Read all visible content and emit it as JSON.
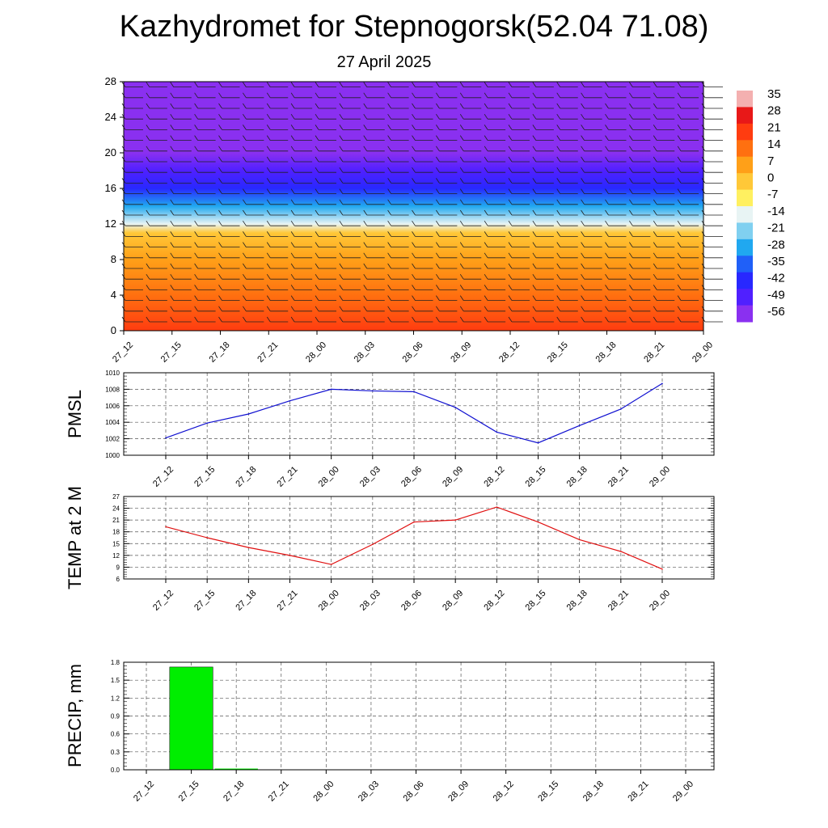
{
  "title": "Kazhydromet for Stepnogorsk(52.04 71.08)",
  "subtitle": "27 April 2025",
  "colors": {
    "pmsl_line": "#1010d0",
    "temp_line": "#e01010",
    "precip_bar": "#00ee00",
    "grid": "#555555"
  },
  "chart_data": [
    {
      "type": "heatmap",
      "name": "cross-section",
      "x_labels": [
        "27_12",
        "27_15",
        "27_18",
        "27_21",
        "28_00",
        "28_03",
        "28_06",
        "28_09",
        "28_12",
        "28_15",
        "28_18",
        "28_21",
        "29_00"
      ],
      "y_ticks": [
        "0",
        "4",
        "8",
        "12",
        "16",
        "20",
        "24",
        "28"
      ],
      "ylim": [
        0,
        28
      ],
      "colorbar_labels": [
        "35",
        "28",
        "21",
        "14",
        "7",
        "0",
        "-7",
        "-14",
        "-21",
        "-28",
        "-35",
        "-42",
        "-49",
        "-56"
      ],
      "colorbar_colors": [
        "#f4b0b0",
        "#e81818",
        "#ff3c10",
        "#ff7010",
        "#ffa018",
        "#ffc838",
        "#fff060",
        "#e8f4f4",
        "#80d0f0",
        "#20a8f0",
        "#2060f8",
        "#2828ff",
        "#5020ff",
        "#8a30f0"
      ],
      "temperature_profile": [
        {
          "level": 0,
          "value": 22
        },
        {
          "level": 4,
          "value": 14
        },
        {
          "level": 8,
          "value": 5
        },
        {
          "level": 11,
          "value": -3
        },
        {
          "level": 12,
          "value": -12
        },
        {
          "level": 14,
          "value": -28
        },
        {
          "level": 16,
          "value": -40
        },
        {
          "level": 18,
          "value": -50
        },
        {
          "level": 20,
          "value": -54
        },
        {
          "level": 24,
          "value": -55
        },
        {
          "level": 28,
          "value": -60
        }
      ]
    },
    {
      "type": "line",
      "name": "pmsl",
      "ylabel": "PMSL",
      "categories": [
        "27_12",
        "27_15",
        "27_18",
        "27_21",
        "28_00",
        "28_03",
        "28_06",
        "28_09",
        "28_12",
        "28_15",
        "28_18",
        "28_21",
        "29_00"
      ],
      "values": [
        1002.1,
        1003.9,
        1005.0,
        1006.6,
        1008.0,
        1007.8,
        1007.7,
        1005.8,
        1002.8,
        1001.5,
        1003.6,
        1005.6,
        1008.7
      ],
      "ylim": [
        1000,
        1010
      ],
      "y_ticks": [
        "1000",
        "1002",
        "1004",
        "1006",
        "1008",
        "1010"
      ]
    },
    {
      "type": "line",
      "name": "temperature",
      "ylabel": "TEMP at 2 M",
      "categories": [
        "27_12",
        "27_15",
        "27_18",
        "27_21",
        "28_00",
        "28_03",
        "28_06",
        "28_09",
        "28_12",
        "28_15",
        "28_18",
        "28_21",
        "29_00"
      ],
      "values": [
        19.3,
        16.5,
        14.0,
        12.0,
        9.7,
        14.8,
        20.5,
        21.0,
        24.3,
        20.5,
        16.0,
        13.0,
        8.5
      ],
      "ylim": [
        6,
        27
      ],
      "y_ticks": [
        "6",
        "9",
        "12",
        "15",
        "18",
        "21",
        "24",
        "27"
      ]
    },
    {
      "type": "bar",
      "name": "precipitation",
      "ylabel": "PRECIP, mm",
      "categories": [
        "27_12",
        "27_15",
        "27_18",
        "27_21",
        "28_00",
        "28_03",
        "28_06",
        "28_09",
        "28_12",
        "28_15",
        "28_18",
        "28_21",
        "29_00"
      ],
      "values": [
        0,
        1.72,
        0.02,
        0,
        0,
        0,
        0,
        0,
        0,
        0,
        0,
        0,
        0
      ],
      "ylim": [
        0,
        1.8
      ],
      "y_ticks": [
        "0.0",
        "0.3",
        "0.6",
        "0.9",
        "1.2",
        "1.5",
        "1.8"
      ]
    }
  ]
}
